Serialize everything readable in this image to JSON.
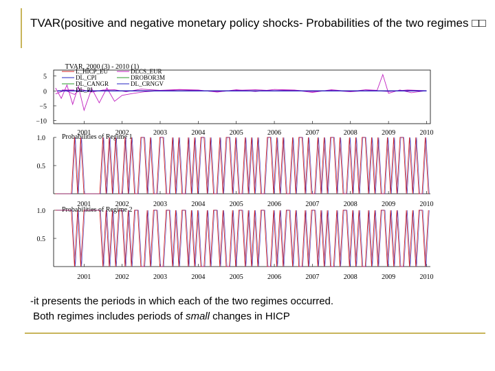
{
  "slide": {
    "title": "TVAR(positive and negative monetary policy shocks- Probabilities of the two regimes □□",
    "caption_line1": "-it presents the periods in which each of the two regimes occurred.",
    "caption_line2_a": "Both regimes includes periods of ",
    "caption_line2_em": "small",
    "caption_line2_b": " changes in HICP"
  },
  "colors": {
    "red": "#d42020",
    "blue": "#2020c0",
    "magenta": "#c020c0",
    "green": "#2a9a2a",
    "accent": "#c8b45a"
  },
  "chart_data": [
    {
      "type": "line",
      "title": "TVAR, 2000 (3) - 2010 (1)",
      "yticks": [
        5,
        0,
        -5,
        -10
      ],
      "ylim": [
        -11,
        7
      ],
      "xlim": [
        2000.2,
        2010.1
      ],
      "xticks": [
        2001,
        2002,
        2003,
        2004,
        2005,
        2006,
        2007,
        2008,
        2009,
        2010
      ],
      "legend": [
        "L_HICP_EU",
        "DLCS_EUR",
        "DL_CPI",
        "DROBOR3M",
        "DL_CANGR",
        "DL_CRNGV",
        "DL_PI"
      ],
      "legend_placement": "top-left",
      "series": [
        {
          "name": "L_HICP_EU",
          "values": [
            0.0,
            0.0,
            0.0,
            0.0,
            0.0,
            0.0,
            0.0,
            0.0,
            0.0,
            0.0,
            0.0,
            0.0
          ]
        },
        {
          "name": "DLCS_EUR",
          "x": [
            2000.25,
            2000.5,
            2000.75,
            2000.9,
            2001.2,
            2001.5,
            2001.8,
            2002.1,
            2002.5,
            2003.0,
            2003.5,
            2004.0,
            2004.5,
            2005.0,
            2005.5,
            2006.0,
            2006.5,
            2007.0,
            2007.5,
            2008.0,
            2008.4,
            2008.7,
            2008.85,
            2009.0,
            2009.3,
            2009.6,
            2010.0
          ],
          "values": [
            -1.0,
            0.2,
            -1.2,
            0.6,
            -0.4,
            0.3,
            0.4,
            -0.3,
            0.6,
            0.2,
            0.5,
            0.3,
            -0.4,
            0.4,
            -0.2,
            0.5,
            0.3,
            -0.5,
            0.4,
            -0.2,
            0.4,
            0.2,
            5.5,
            -0.8,
            0.3,
            -0.6,
            0.1
          ]
        },
        {
          "name": "DL_PI",
          "x": [
            2000.25,
            2000.4,
            2000.55,
            2000.7,
            2000.85,
            2001.0,
            2001.2,
            2001.4,
            2001.6,
            2001.8,
            2002.0,
            2002.3,
            2002.6,
            2003.0,
            2003.5,
            2004.0,
            2004.5,
            2005.0,
            2005.5,
            2006.0,
            2006.5,
            2007.0,
            2007.5,
            2008.0,
            2008.5,
            2009.0,
            2009.5,
            2010.0
          ],
          "values": [
            1.0,
            -2.5,
            2.0,
            -4.5,
            1.5,
            -6.5,
            0.8,
            -4.0,
            1.0,
            -3.5,
            -1.5,
            -0.8,
            -0.3,
            0.1,
            0.4,
            0.2,
            -0.3,
            0.2,
            0.4,
            0.1,
            0.3,
            -0.2,
            0.2,
            -0.3,
            0.2,
            -0.2,
            0.3,
            0.1
          ]
        },
        {
          "name": "DROBOR3M",
          "values": [
            0.0,
            0.0,
            0.0,
            0.0,
            0.0,
            0.0,
            0.0,
            0.0,
            0.0,
            0.0,
            0.0,
            0.0
          ]
        }
      ]
    },
    {
      "type": "line",
      "title": "Probabilities of Regime 1",
      "yticks": [
        1.0,
        0.5
      ],
      "ylim": [
        0,
        1
      ],
      "xticks": [
        2001,
        2002,
        2003,
        2004,
        2005,
        2006,
        2007,
        2008,
        2009,
        2010
      ],
      "series": [
        {
          "name": "Regime 1",
          "values": [
            0,
            0,
            0,
            0,
            0,
            0,
            1,
            0,
            1,
            0,
            0,
            0,
            0,
            0,
            0,
            1,
            0,
            1,
            0,
            1,
            0,
            0,
            1,
            0,
            1,
            0,
            0,
            1,
            1,
            0,
            1,
            0,
            0,
            1,
            1,
            0,
            0,
            1,
            0,
            1,
            0,
            0,
            1,
            0,
            1,
            0,
            1,
            1,
            0,
            1,
            0,
            0,
            1,
            0,
            1,
            1,
            0,
            1,
            0,
            0,
            1,
            0,
            1,
            0,
            1,
            0,
            0,
            1,
            1,
            0,
            1,
            0,
            1,
            0,
            0,
            1,
            0,
            1,
            1,
            0,
            1,
            0,
            0,
            1,
            0,
            1,
            0,
            1,
            1,
            0,
            1,
            0,
            0,
            1,
            0,
            1,
            0,
            1,
            1,
            0,
            1,
            0,
            1,
            0,
            0,
            1,
            0,
            1,
            0,
            1,
            1,
            0,
            1,
            0,
            1,
            0,
            0,
            1,
            0
          ]
        }
      ]
    },
    {
      "type": "line",
      "title": "Probabilities of Regime 2",
      "yticks": [
        1.0,
        0.5
      ],
      "ylim": [
        0,
        1
      ],
      "xticks": [
        2001,
        2002,
        2003,
        2004,
        2005,
        2006,
        2007,
        2008,
        2009,
        2010
      ],
      "series": [
        {
          "name": "Regime 2",
          "values": [
            1,
            1,
            1,
            1,
            1,
            1,
            0,
            1,
            0,
            1,
            1,
            1,
            1,
            1,
            1,
            0,
            1,
            0,
            1,
            0,
            1,
            1,
            0,
            1,
            0,
            1,
            1,
            0,
            0,
            1,
            0,
            1,
            1,
            0,
            0,
            1,
            1,
            0,
            1,
            0,
            1,
            1,
            0,
            1,
            0,
            1,
            0,
            0,
            1,
            0,
            1,
            1,
            0,
            1,
            0,
            0,
            1,
            0,
            1,
            1,
            0,
            1,
            0,
            1,
            0,
            1,
            1,
            0,
            0,
            1,
            0,
            1,
            0,
            1,
            1,
            0,
            1,
            0,
            0,
            1,
            0,
            1,
            1,
            0,
            1,
            0,
            1,
            0,
            0,
            1,
            0,
            1,
            1,
            0,
            1,
            0,
            1,
            0,
            0,
            1,
            0,
            1,
            0,
            1,
            1,
            0,
            1,
            0,
            1,
            0,
            0,
            1,
            0,
            1,
            0,
            1,
            1,
            0,
            1
          ]
        }
      ]
    }
  ]
}
